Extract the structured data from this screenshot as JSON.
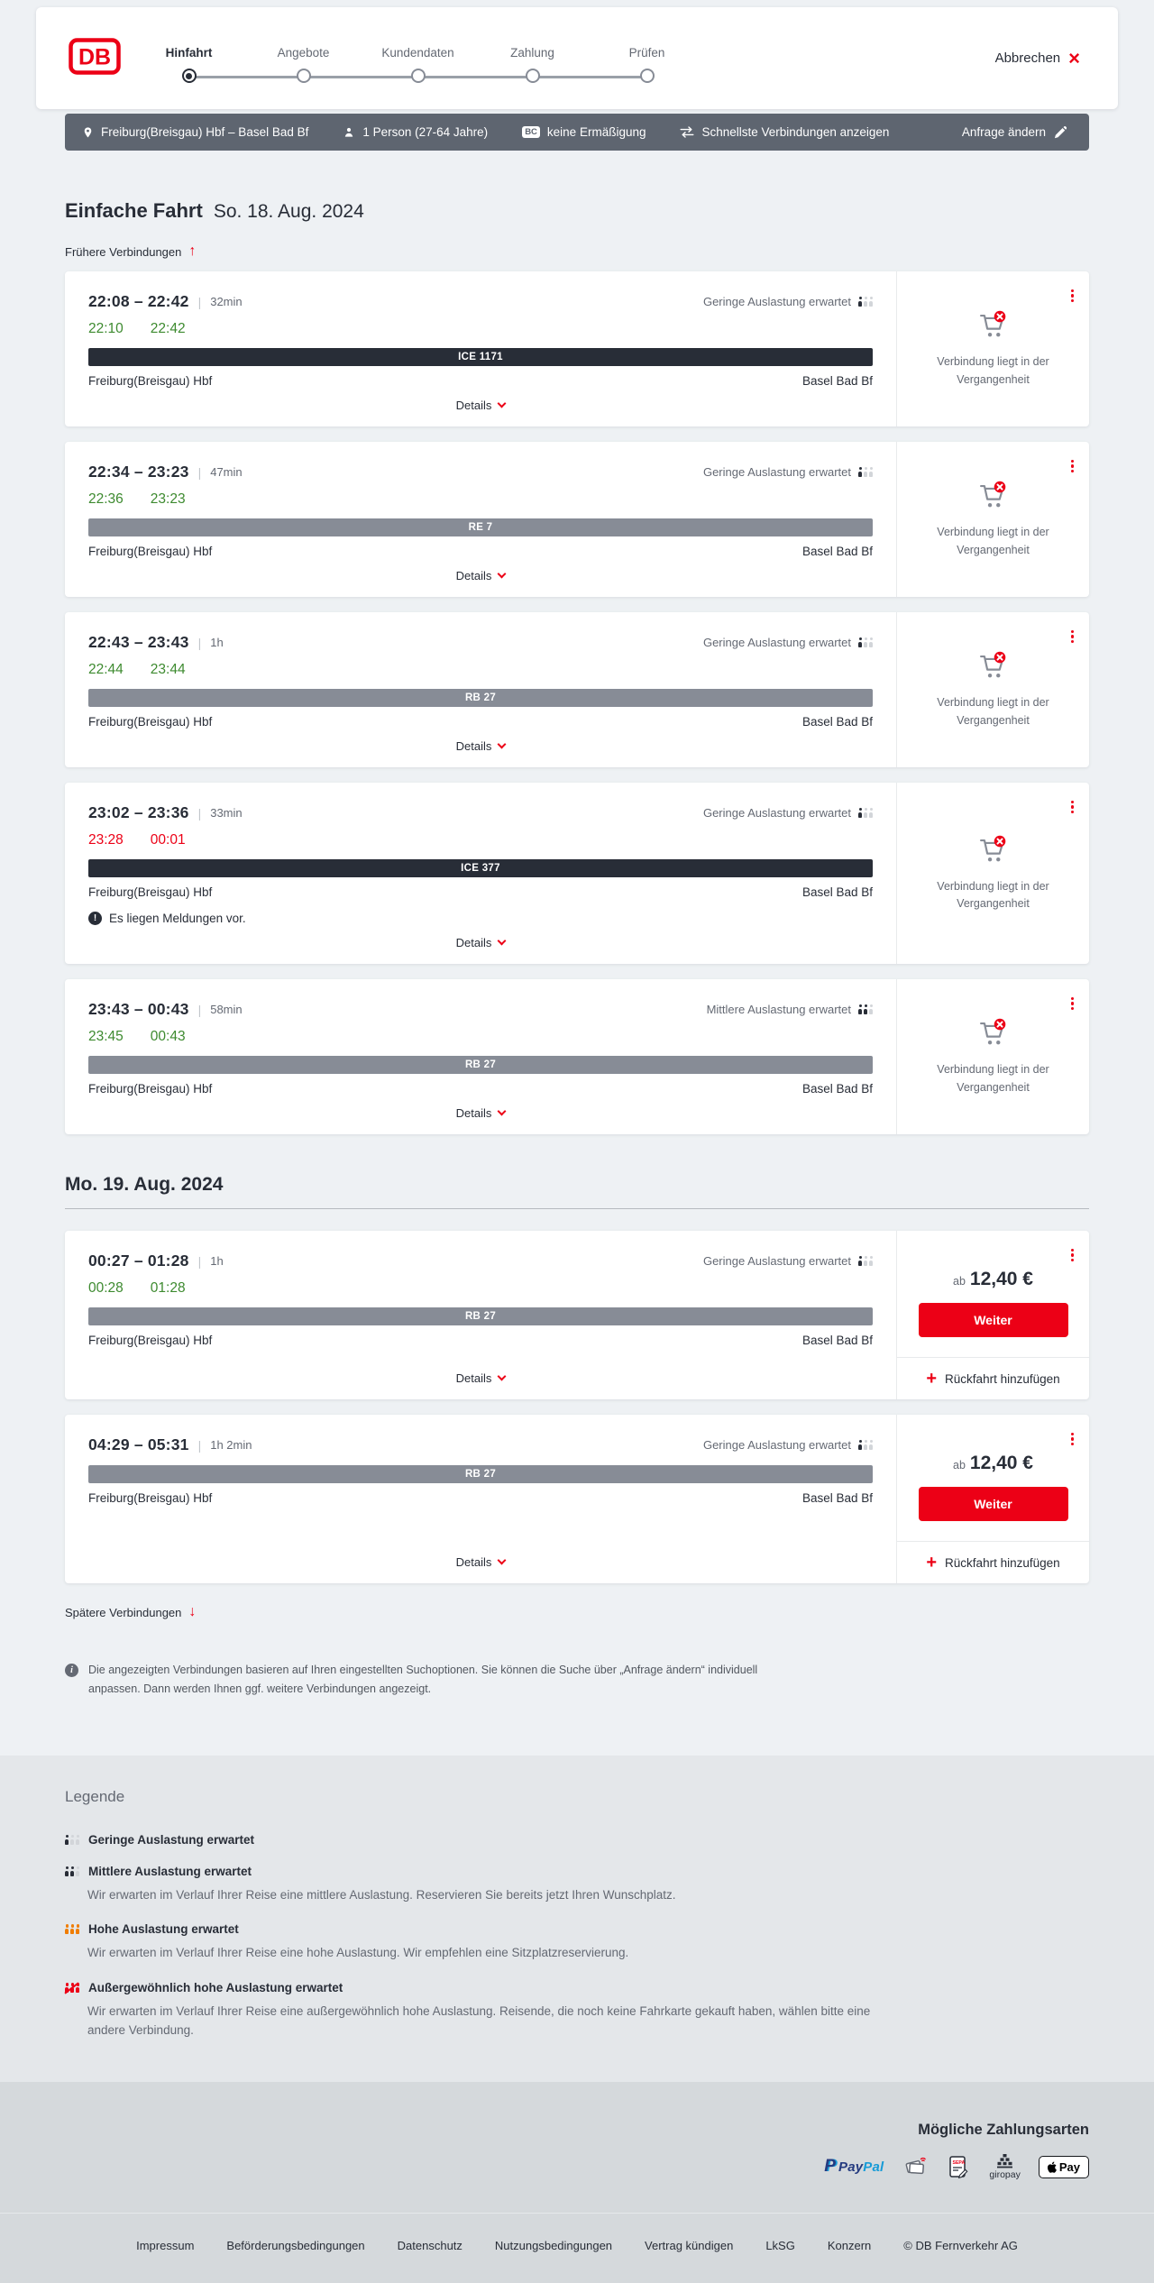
{
  "header": {
    "logo_text": "DB",
    "steps": [
      {
        "label": "Hinfahrt",
        "active": true
      },
      {
        "label": "Angebote",
        "active": false
      },
      {
        "label": "Kundendaten",
        "active": false
      },
      {
        "label": "Zahlung",
        "active": false
      },
      {
        "label": "Prüfen",
        "active": false
      }
    ],
    "cancel_label": "Abbrechen",
    "cancel_x": "×"
  },
  "criteria_bar": {
    "route": "Freiburg(Breisgau) Hbf – Basel Bad Bf",
    "passengers": "1 Person (27-64 Jahre)",
    "bahncard_badge": "BC",
    "discount": "keine Ermäßigung",
    "speed_option": "Schnellste Verbindungen anzeigen",
    "change_request": "Anfrage ändern"
  },
  "page": {
    "title": "Einfache Fahrt",
    "date": "So. 18. Aug. 2024",
    "earlier_link": "Frühere Verbindungen",
    "earlier_arrow": "↑",
    "later_link": "Spätere Verbindungen",
    "later_arrow": "↓",
    "day2_heading": "Mo. 19. Aug. 2024",
    "info_note": "Die angezeigten Verbindungen basieren auf Ihren eingestellten Suchoptionen. Sie können die Suche über „Anfrage ändern“ individuell anpassen. Dann werden Ihnen ggf. weitere Verbindungen angezeigt."
  },
  "labels": {
    "details": "Details",
    "plus": "+"
  },
  "connections": [
    {
      "time": "22:08 – 22:42",
      "duration": "32min",
      "occupancy_label": "Geringe Auslastung erwartet",
      "occupancy_level": "1",
      "rt_status": "ontime",
      "rt_dep": "22:10",
      "rt_arr": "22:42",
      "train": "ICE 1171",
      "train_class": "dark",
      "from": "Freiburg(Breisgau) Hbf",
      "to": "Basel Bad Bf",
      "has_message": "no",
      "message": "",
      "variant": "past",
      "past_note": "Verbindung liegt in der Vergangenheit"
    },
    {
      "time": "22:34 – 23:23",
      "duration": "47min",
      "occupancy_label": "Geringe Auslastung erwartet",
      "occupancy_level": "1",
      "rt_status": "ontime",
      "rt_dep": "22:36",
      "rt_arr": "23:23",
      "train": "RE 7",
      "train_class": "gray",
      "from": "Freiburg(Breisgau) Hbf",
      "to": "Basel Bad Bf",
      "has_message": "no",
      "message": "",
      "variant": "past",
      "past_note": "Verbindung liegt in der Vergangenheit"
    },
    {
      "time": "22:43 – 23:43",
      "duration": "1h",
      "occupancy_label": "Geringe Auslastung erwartet",
      "occupancy_level": "1",
      "rt_status": "ontime",
      "rt_dep": "22:44",
      "rt_arr": "23:44",
      "train": "RB 27",
      "train_class": "gray",
      "from": "Freiburg(Breisgau) Hbf",
      "to": "Basel Bad Bf",
      "has_message": "no",
      "message": "",
      "variant": "past",
      "past_note": "Verbindung liegt in der Vergangenheit"
    },
    {
      "time": "23:02 – 23:36",
      "duration": "33min",
      "occupancy_label": "Geringe Auslastung erwartet",
      "occupancy_level": "1",
      "rt_status": "delayed",
      "rt_dep": "23:28",
      "rt_arr": "00:01",
      "train": "ICE 377",
      "train_class": "dark",
      "from": "Freiburg(Breisgau) Hbf",
      "to": "Basel Bad Bf",
      "has_message": "yes",
      "message": "Es liegen Meldungen vor.",
      "variant": "past",
      "past_note": "Verbindung liegt in der Vergangenheit"
    },
    {
      "time": "23:43 – 00:43",
      "duration": "58min",
      "occupancy_label": "Mittlere Auslastung erwartet",
      "occupancy_level": "2",
      "rt_status": "ontime",
      "rt_dep": "23:45",
      "rt_arr": "00:43",
      "train": "RB 27",
      "train_class": "gray",
      "from": "Freiburg(Breisgau) Hbf",
      "to": "Basel Bad Bf",
      "has_message": "no",
      "message": "",
      "variant": "past",
      "past_note": "Verbindung liegt in der Vergangenheit"
    },
    {
      "time": "00:27 – 01:28",
      "duration": "1h",
      "occupancy_label": "Geringe Auslastung erwartet",
      "occupancy_level": "1",
      "rt_status": "ontime",
      "rt_dep": "00:28",
      "rt_arr": "01:28",
      "train": "RB 27",
      "train_class": "gray",
      "from": "Freiburg(Breisgau) Hbf",
      "to": "Basel Bad Bf",
      "has_message": "no",
      "message": "",
      "variant": "price",
      "price_prefix": "ab",
      "price": "12,40 €",
      "cta": "Weiter",
      "add_return": "Rückfahrt hinzufügen"
    },
    {
      "time": "04:29 – 05:31",
      "duration": "1h 2min",
      "occupancy_label": "Geringe Auslastung erwartet",
      "occupancy_level": "1",
      "rt_status": "none",
      "rt_dep": "",
      "rt_arr": "",
      "train": "RB 27",
      "train_class": "gray",
      "from": "Freiburg(Breisgau) Hbf",
      "to": "Basel Bad Bf",
      "has_message": "no",
      "message": "",
      "variant": "price",
      "price_prefix": "ab",
      "price": "12,40 €",
      "cta": "Weiter",
      "add_return": "Rückfahrt hinzufügen"
    }
  ],
  "legend": {
    "title": "Legende",
    "items": [
      {
        "level": "1",
        "label": "Geringe Auslastung erwartet",
        "desc": ""
      },
      {
        "level": "2",
        "label": "Mittlere Auslastung erwartet",
        "desc": "Wir erwarten im Verlauf Ihrer Reise eine mittlere Auslastung. Reservieren Sie bereits jetzt Ihren Wunschplatz."
      },
      {
        "level": "3",
        "label": "Hohe Auslastung erwartet",
        "desc": "Wir erwarten im Verlauf Ihrer Reise eine hohe Auslastung. Wir empfehlen eine Sitzplatzreservierung."
      },
      {
        "level": "4",
        "label": "Außergewöhnlich hohe Auslastung erwartet",
        "desc": "Wir erwarten im Verlauf Ihrer Reise eine außergewöhnlich hohe Auslastung. Reisende, die noch keine Fahrkarte gekauft haben, wählen bitte eine andere Verbindung."
      }
    ]
  },
  "footer": {
    "payments_title": "Mögliche Zahlungsarten",
    "paypal_p": "P",
    "paypal_pay": "Pay",
    "paypal_pal": "Pal",
    "giropay_label": "giropay",
    "applepay_label": "Pay",
    "links": [
      "Impressum",
      "Beförderungsbedingungen",
      "Datenschutz",
      "Nutzungsbedingungen",
      "Vertrag kündigen",
      "LkSG",
      "Konzern"
    ],
    "copyright": "© DB Fernverkehr AG"
  }
}
